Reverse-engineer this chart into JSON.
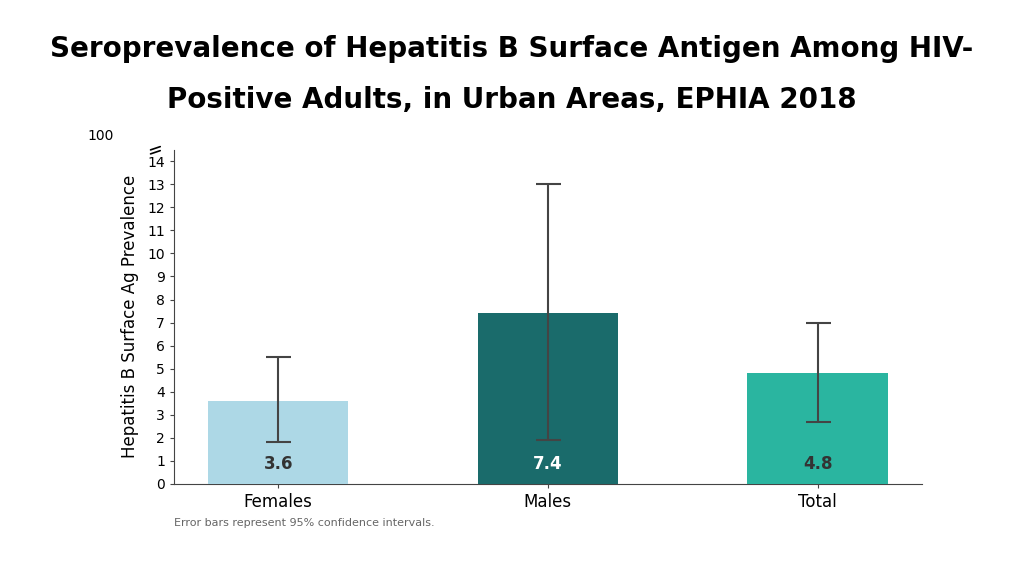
{
  "title_line1": "Seroprevalence of Hepatitis B Surface Antigen Among HIV-",
  "title_line2": "Positive Adults, in Urban Areas, EPHIA 2018",
  "ylabel": "Hepatitis B Surface Ag Prevalence",
  "categories": [
    "Females",
    "Males",
    "Total"
  ],
  "values": [
    3.6,
    7.4,
    4.8
  ],
  "ci_lower": [
    1.8,
    1.9,
    2.7
  ],
  "ci_upper": [
    5.5,
    13.0,
    7.0
  ],
  "bar_colors": [
    "#add8e6",
    "#1a6b6b",
    "#2ab5a0"
  ],
  "value_labels": [
    "3.6",
    "7.4",
    "4.8"
  ],
  "value_label_colors": [
    "#333333",
    "#ffffff",
    "#333333"
  ],
  "yticks_main": [
    0,
    1,
    2,
    3,
    4,
    5,
    6,
    7,
    8,
    9,
    10,
    11,
    12,
    13,
    14
  ],
  "footnote": "Error bars represent 95% confidence intervals.",
  "background_color": "#ffffff",
  "title_fontsize": 20,
  "axis_label_fontsize": 12,
  "tick_fontsize": 10,
  "bar_label_fontsize": 12,
  "footnote_fontsize": 8,
  "category_fontsize": 12
}
